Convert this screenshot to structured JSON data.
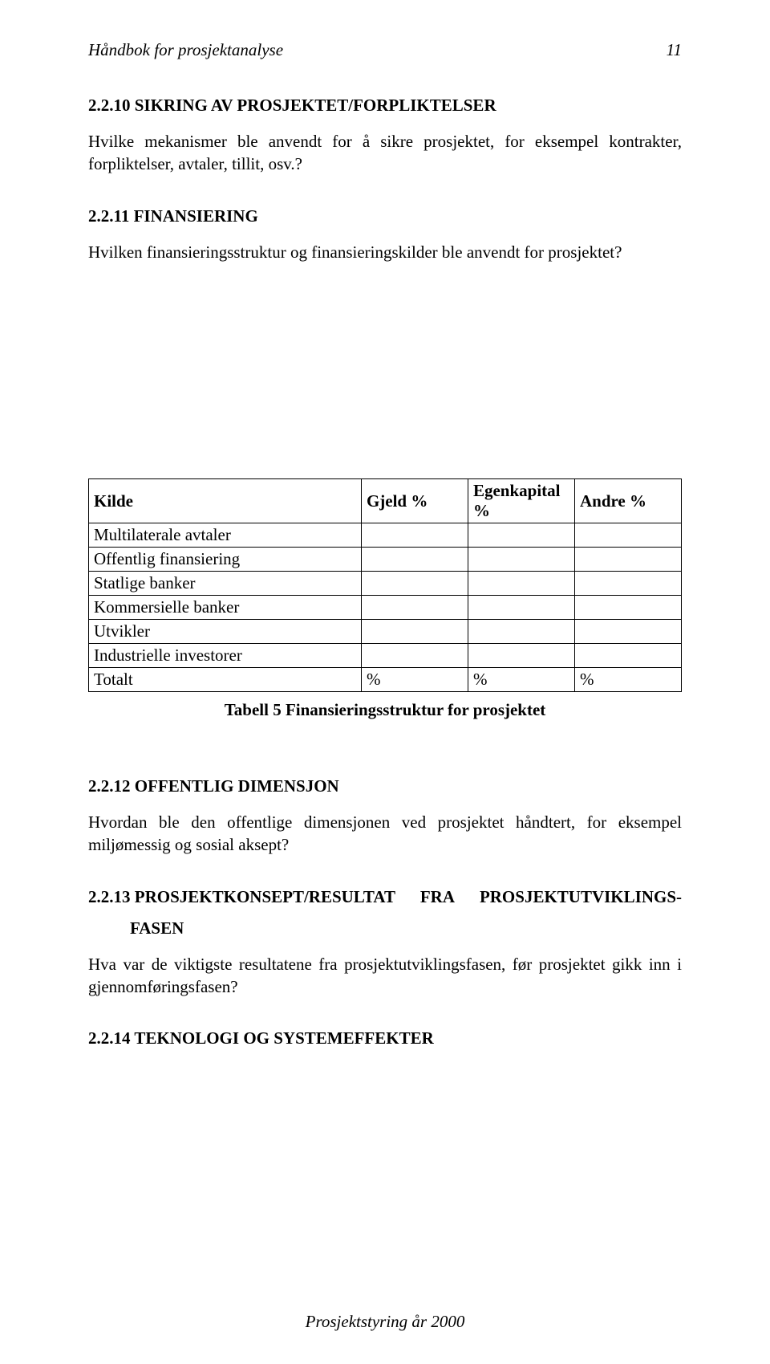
{
  "header": {
    "title": "Håndbok for prosjektanalyse",
    "page": "11"
  },
  "sections": {
    "s2210": {
      "heading": "2.2.10  SIKRING AV PROSJEKTET/FORPLIKTELSER",
      "body": "Hvilke mekanismer ble anvendt for å sikre prosjektet, for eksempel kontrakter, forpliktelser, avtaler, tillit, osv.?"
    },
    "s2211": {
      "heading": "2.2.11  FINANSIERING",
      "body": "Hvilken finansieringsstruktur og finansieringskilder ble anvendt for prosjektet?"
    },
    "s2212": {
      "heading": "2.2.12  OFFENTLIG DIMENSJON",
      "body": "Hvordan ble den offentlige dimensjonen ved prosjektet håndtert, for eksempel miljømessig og sosial aksept?"
    },
    "s2213": {
      "h_left": "2.2.13  PROSJEKTKONSEPT/RESULTAT",
      "h_mid": "FRA",
      "h_right": "PROSJEKTUTVIKLINGS-",
      "h_indent": "FASEN",
      "body": "Hva var de viktigste resultatene fra prosjektutviklingsfasen, før prosjektet gikk inn i gjennomføringsfasen?"
    },
    "s2214": {
      "heading": "2.2.14  TEKNOLOGI OG SYSTEMEFFEKTER"
    }
  },
  "table": {
    "headers": [
      "Kilde",
      "Gjeld %",
      "Egenkapital %",
      "Andre %"
    ],
    "rows": [
      {
        "label": "Multilaterale avtaler",
        "c1": "",
        "c2": "",
        "c3": ""
      },
      {
        "label": "Offentlig finansiering",
        "c1": "",
        "c2": "",
        "c3": ""
      },
      {
        "label": "Statlige banker",
        "c1": "",
        "c2": "",
        "c3": ""
      },
      {
        "label": "Kommersielle banker",
        "c1": "",
        "c2": "",
        "c3": ""
      },
      {
        "label": "Utvikler",
        "c1": "",
        "c2": "",
        "c3": ""
      },
      {
        "label": "Industrielle investorer",
        "c1": "",
        "c2": "",
        "c3": ""
      }
    ],
    "total": {
      "label": "Totalt",
      "c1": "%",
      "c2": "%",
      "c3": "%"
    },
    "caption": "Tabell 5 Finansieringsstruktur for prosjektet"
  },
  "footer": "Prosjektstyring år 2000"
}
